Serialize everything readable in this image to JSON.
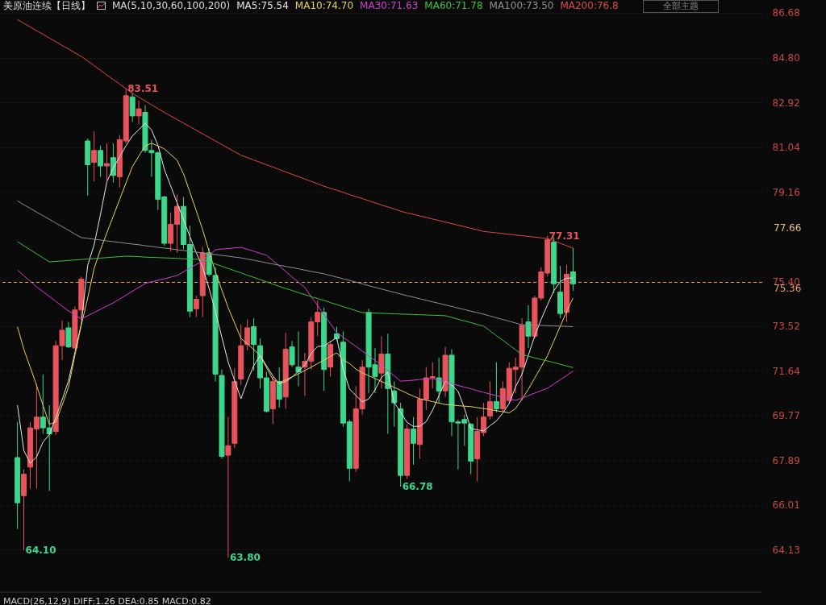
{
  "chart_data": {
    "type": "candlestick",
    "title": "美原油连续【日线】",
    "subtitle": "MA(5,10,30,60,100,200)",
    "grid": "y",
    "tick_labels": "y",
    "ylim": [
      62.35,
      87.22
    ],
    "yticks": [
      86.68,
      {
        "value": 84.8,
        "label": "84.80"
      },
      82.92,
      81.04,
      79.16,
      {
        "value": 75.4,
        "label": "75.40"
      },
      73.52,
      71.64,
      69.77,
      67.89,
      66.01,
      64.13
    ],
    "categories": [
      null,
      null,
      null,
      null,
      null,
      null,
      null,
      null,
      null,
      null,
      null,
      null,
      null,
      null,
      null,
      null,
      null,
      null,
      null,
      null,
      null,
      null,
      null,
      null,
      null,
      null,
      null,
      null,
      null,
      null,
      null,
      null,
      null,
      null,
      null,
      null,
      null,
      null,
      null,
      null,
      null,
      null,
      null,
      null,
      null,
      null,
      null,
      null,
      null,
      null,
      null,
      null,
      null,
      null,
      null,
      null,
      null,
      null,
      null,
      null,
      null,
      null,
      null,
      null,
      null,
      null,
      null,
      null,
      null,
      null,
      null,
      null,
      null,
      null,
      null,
      null,
      null,
      null,
      null,
      null,
      null,
      null,
      null,
      null,
      null,
      null,
      null,
      null
    ],
    "ohlc": [
      [
        68.0,
        69.5,
        65.0,
        66.1
      ],
      [
        66.4,
        67.5,
        64.1,
        67.3
      ],
      [
        67.6,
        69.5,
        66.7,
        69.25
      ],
      [
        69.2,
        71.1,
        66.7,
        69.7
      ],
      [
        69.7,
        71.5,
        69.0,
        69.25
      ],
      [
        69.25,
        70.2,
        66.6,
        69.0
      ],
      [
        69.1,
        72.9,
        68.95,
        72.7
      ],
      [
        72.7,
        73.75,
        72.1,
        73.35
      ],
      [
        73.45,
        73.7,
        72.6,
        72.65
      ],
      [
        72.6,
        74.35,
        72.6,
        74.2
      ],
      [
        74.2,
        75.6,
        73.8,
        75.5
      ],
      [
        81.3,
        81.4,
        79.0,
        80.3
      ],
      [
        80.4,
        81.7,
        79.6,
        80.9
      ],
      [
        80.9,
        81.1,
        79.8,
        80.25
      ],
      [
        80.25,
        81.2,
        79.65,
        80.35
      ],
      [
        80.6,
        81.2,
        79.55,
        79.85
      ],
      [
        79.8,
        81.55,
        79.35,
        81.35
      ],
      [
        81.3,
        83.51,
        81.2,
        83.2
      ],
      [
        83.15,
        83.3,
        82.1,
        82.35
      ],
      [
        82.35,
        83.0,
        82.0,
        82.65
      ],
      [
        82.5,
        82.8,
        80.8,
        80.9
      ],
      [
        80.9,
        81.35,
        79.8,
        80.8
      ],
      [
        80.8,
        80.85,
        78.4,
        78.85
      ],
      [
        78.95,
        79.0,
        76.9,
        77.0
      ],
      [
        77.0,
        78.3,
        76.65,
        77.8
      ],
      [
        77.8,
        79.05,
        76.6,
        78.55
      ],
      [
        78.55,
        78.95,
        76.75,
        76.95
      ],
      [
        76.95,
        77.75,
        73.9,
        74.15
      ],
      [
        74.25,
        74.8,
        73.9,
        74.65
      ],
      [
        74.8,
        76.85,
        73.9,
        76.6
      ],
      [
        76.6,
        76.8,
        75.6,
        75.7
      ],
      [
        75.65,
        76.0,
        71.2,
        71.5
      ],
      [
        71.45,
        71.7,
        67.95,
        68.05
      ],
      [
        68.1,
        69.7,
        63.8,
        68.5
      ],
      [
        68.6,
        71.75,
        68.4,
        71.2
      ],
      [
        71.3,
        73.6,
        71.05,
        72.7
      ],
      [
        72.75,
        73.8,
        72.5,
        73.45
      ],
      [
        73.5,
        73.85,
        71.65,
        72.75
      ],
      [
        72.7,
        73.0,
        70.9,
        71.35
      ],
      [
        71.35,
        71.6,
        69.9,
        69.95
      ],
      [
        70.05,
        71.4,
        69.4,
        71.2
      ],
      [
        71.2,
        71.8,
        70.1,
        70.45
      ],
      [
        70.55,
        73.25,
        70.05,
        72.55
      ],
      [
        72.65,
        72.9,
        71.8,
        71.9
      ],
      [
        71.8,
        73.3,
        71.0,
        71.6
      ],
      [
        71.8,
        72.4,
        70.6,
        72.05
      ],
      [
        72.05,
        73.9,
        71.7,
        73.7
      ],
      [
        73.7,
        74.6,
        73.1,
        74.1
      ],
      [
        74.1,
        74.3,
        70.8,
        71.7
      ],
      [
        71.8,
        72.9,
        71.4,
        72.75
      ],
      [
        73.2,
        73.5,
        72.9,
        73.0
      ],
      [
        72.85,
        73.3,
        69.3,
        69.45
      ],
      [
        69.5,
        69.6,
        67.0,
        67.55
      ],
      [
        67.55,
        71.0,
        67.4,
        70.05
      ],
      [
        70.05,
        72.1,
        69.8,
        71.8
      ],
      [
        74.1,
        74.25,
        70.7,
        71.8
      ],
      [
        71.9,
        72.6,
        70.7,
        71.4
      ],
      [
        71.55,
        73.1,
        70.9,
        72.35
      ],
      [
        72.35,
        73.2,
        69.0,
        70.9
      ],
      [
        70.8,
        71.2,
        69.3,
        70.3
      ],
      [
        70.05,
        70.3,
        66.78,
        67.25
      ],
      [
        67.25,
        69.4,
        67.1,
        69.2
      ],
      [
        69.2,
        69.7,
        67.7,
        68.6
      ],
      [
        68.55,
        70.9,
        67.95,
        70.45
      ],
      [
        70.45,
        71.8,
        70.0,
        71.35
      ],
      [
        71.35,
        72.0,
        70.9,
        71.4
      ],
      [
        71.35,
        72.2,
        70.3,
        70.8
      ],
      [
        70.8,
        72.65,
        70.55,
        72.3
      ],
      [
        72.3,
        72.55,
        68.9,
        69.5
      ],
      [
        69.5,
        69.6,
        67.5,
        69.45
      ],
      [
        69.6,
        69.8,
        68.5,
        69.45
      ],
      [
        69.4,
        69.45,
        67.3,
        67.85
      ],
      [
        67.95,
        69.7,
        67.0,
        69.1
      ],
      [
        69.05,
        70.3,
        68.9,
        69.7
      ],
      [
        69.75,
        71.2,
        69.6,
        70.35
      ],
      [
        70.35,
        72.0,
        69.9,
        70.05
      ],
      [
        70.05,
        71.2,
        69.9,
        70.9
      ],
      [
        70.4,
        72.0,
        70.3,
        71.75
      ],
      [
        71.7,
        72.2,
        70.7,
        71.8
      ],
      [
        71.8,
        73.85,
        70.4,
        73.55
      ],
      [
        73.7,
        74.4,
        72.6,
        73.1
      ],
      [
        73.1,
        74.8,
        73.0,
        74.7
      ],
      [
        74.7,
        76.0,
        74.6,
        75.8
      ],
      [
        75.75,
        77.31,
        75.6,
        77.15
      ],
      [
        77.05,
        77.25,
        74.9,
        75.3
      ],
      [
        74.95,
        76.05,
        73.85,
        74.05
      ],
      [
        74.1,
        76.1,
        73.7,
        75.7
      ],
      [
        75.8,
        76.8,
        75.0,
        75.3
      ]
    ],
    "colors": [
      "#3dd68c",
      "#e8545c",
      "#e8545c",
      "#e8545c",
      "#3dd68c",
      "#3dd68c",
      "#e8545c",
      "#e8545c",
      "#3dd68c",
      "#e8545c",
      "#e8545c",
      "#3dd68c",
      "#e8545c",
      "#3dd68c",
      "#e8545c",
      "#3dd68c",
      "#e8545c",
      "#e8545c",
      "#3dd68c",
      "#e8545c",
      "#3dd68c",
      "#3dd68c",
      "#3dd68c",
      "#3dd68c",
      "#e8545c",
      "#e8545c",
      "#3dd68c",
      "#3dd68c",
      "#e8545c",
      "#e8545c",
      "#3dd68c",
      "#3dd68c",
      "#3dd68c",
      "#e8545c",
      "#e8545c",
      "#e8545c",
      "#e8545c",
      "#3dd68c",
      "#3dd68c",
      "#3dd68c",
      "#e8545c",
      "#3dd68c",
      "#e8545c",
      "#3dd68c",
      "#3dd68c",
      "#e8545c",
      "#e8545c",
      "#e8545c",
      "#3dd68c",
      "#e8545c",
      "#3dd68c",
      "#3dd68c",
      "#3dd68c",
      "#e8545c",
      "#e8545c",
      "#3dd68c",
      "#3dd68c",
      "#e8545c",
      "#3dd68c",
      "#3dd68c",
      "#3dd68c",
      "#e8545c",
      "#3dd68c",
      "#e8545c",
      "#e8545c",
      "#e8545c",
      "#3dd68c",
      "#e8545c",
      "#3dd68c",
      "#3dd68c",
      "#3dd68c",
      "#3dd68c",
      "#e8545c",
      "#e8545c",
      "#e8545c",
      "#3dd68c",
      "#e8545c",
      "#e8545c",
      "#e8545c",
      "#e8545c",
      "#3dd68c",
      "#e8545c",
      "#e8545c",
      "#e8545c",
      "#3dd68c",
      "#3dd68c",
      "#e8545c",
      "#3dd68c"
    ],
    "series": [
      {
        "name": "MA5:75.54",
        "type": "line",
        "color": "#e6e6e6",
        "values": [
          70.2,
          68.3,
          67.76,
          68.03,
          68.65,
          68.97,
          69.68,
          70.43,
          71.23,
          72.42,
          73.61,
          76.08,
          76.93,
          78.21,
          79.59,
          80.16,
          80.63,
          81.1,
          81.51,
          81.77,
          82.05,
          81.76,
          81.12,
          80.11,
          79.41,
          78.7,
          78.0,
          77.29,
          76.6,
          76.01,
          75.11,
          74.14,
          73.06,
          72.01,
          71.24,
          70.47,
          71.21,
          71.86,
          72.29,
          71.86,
          71.43,
          71.1,
          71.2,
          71.38,
          71.63,
          71.89,
          72.38,
          72.67,
          72.69,
          72.87,
          73.04,
          71.72,
          70.88,
          70.61,
          70.34,
          70.46,
          70.85,
          71.37,
          71.59,
          70.31,
          69.91,
          69.48,
          69.31,
          69.32,
          69.51,
          69.99,
          70.6,
          71.21,
          71.05,
          70.78,
          70.07,
          69.21,
          69.17,
          69.12,
          69.34,
          69.54,
          69.87,
          70.27,
          70.97,
          71.5,
          72.3,
          73.11,
          73.8,
          74.42,
          75.01,
          75.39,
          75.54,
          75.54
        ]
      },
      {
        "name": "MA10:74.70",
        "type": "line",
        "color": "#e8d25a",
        "values": [
          73.5,
          72.55,
          71.8,
          71.03,
          70.2,
          69.4,
          69.5,
          70.2,
          70.97,
          72.3,
          73.57,
          74.7,
          75.94,
          76.73,
          77.44,
          78.14,
          78.84,
          79.54,
          80.22,
          80.66,
          81.1,
          81.2,
          81.09,
          80.97,
          80.73,
          80.49,
          79.92,
          79.15,
          78.37,
          77.57,
          76.67,
          75.8,
          75.04,
          74.3,
          73.65,
          73.01,
          72.78,
          72.54,
          72.28,
          71.78,
          71.28,
          71.15,
          71.27,
          71.39,
          71.52,
          71.66,
          71.8,
          71.95,
          72.1,
          72.25,
          72.4,
          72.1,
          71.95,
          71.72,
          71.56,
          71.44,
          71.32,
          71.2,
          71.08,
          70.95,
          70.83,
          70.7,
          70.58,
          70.47,
          70.41,
          70.35,
          70.29,
          70.23,
          70.21,
          70.18,
          70.16,
          70.14,
          70.1,
          70.06,
          70.02,
          69.97,
          69.93,
          69.88,
          70.06,
          70.45,
          70.87,
          71.34,
          71.81,
          72.28,
          72.9,
          73.52,
          74.14,
          74.7
        ]
      },
      {
        "name": "MA30:71.63",
        "type": "line",
        "color": "#d040d0",
        "values": [
          75.88,
          75.64,
          75.41,
          75.17,
          74.97,
          74.77,
          74.56,
          74.36,
          74.16,
          73.99,
          73.82,
          73.96,
          74.09,
          74.23,
          74.36,
          74.5,
          74.66,
          74.82,
          74.99,
          75.15,
          75.31,
          75.38,
          75.45,
          75.51,
          75.58,
          75.65,
          75.8,
          75.96,
          76.11,
          76.26,
          76.5,
          76.73,
          76.76,
          76.78,
          76.81,
          76.83,
          76.75,
          76.67,
          76.58,
          76.5,
          76.27,
          76.05,
          75.82,
          75.59,
          75.37,
          75.14,
          74.76,
          74.39,
          74.01,
          73.63,
          73.25,
          73.06,
          72.86,
          72.67,
          72.47,
          72.28,
          72.08,
          71.89,
          71.66,
          71.44,
          71.21,
          71.23,
          71.25,
          71.28,
          71.3,
          71.32,
          71.25,
          71.18,
          71.1,
          71.03,
          70.96,
          70.89,
          70.81,
          70.74,
          70.67,
          70.6,
          70.54,
          70.47,
          70.4,
          70.5,
          70.6,
          70.71,
          70.81,
          70.91,
          71.09,
          71.27,
          71.45,
          71.63
        ]
      },
      {
        "name": "MA60:71.78",
        "type": "line",
        "color": "#40c040",
        "values": [
          77.07,
          76.9,
          76.73,
          76.56,
          76.39,
          76.22,
          76.24,
          76.26,
          76.28,
          76.3,
          76.32,
          76.34,
          76.36,
          76.38,
          76.4,
          76.42,
          76.44,
          76.46,
          76.45,
          76.44,
          76.42,
          76.41,
          76.4,
          76.39,
          76.38,
          76.37,
          76.35,
          76.34,
          76.33,
          76.32,
          76.23,
          76.13,
          76.04,
          75.94,
          75.85,
          75.76,
          75.66,
          75.57,
          75.48,
          75.38,
          75.29,
          75.19,
          75.1,
          75.02,
          74.93,
          74.85,
          74.76,
          74.68,
          74.6,
          74.51,
          74.43,
          74.34,
          74.26,
          74.17,
          74.09,
          74.08,
          74.07,
          74.06,
          74.05,
          74.04,
          74.03,
          74.02,
          74.01,
          74.0,
          73.99,
          73.98,
          73.97,
          73.96,
          73.89,
          73.81,
          73.74,
          73.67,
          73.59,
          73.52,
          73.32,
          73.12,
          72.93,
          72.73,
          72.53,
          72.33,
          72.26,
          72.19,
          72.12,
          72.06,
          71.99,
          71.92,
          71.85,
          71.78
        ]
      },
      {
        "name": "MA100:73.50",
        "type": "line",
        "color": "#909090",
        "values": [
          78.78,
          78.62,
          78.47,
          78.31,
          78.16,
          78.01,
          77.85,
          77.7,
          77.55,
          77.39,
          77.24,
          77.21,
          77.17,
          77.14,
          77.1,
          77.07,
          77.04,
          77.0,
          76.97,
          76.94,
          76.9,
          76.87,
          76.83,
          76.8,
          76.77,
          76.73,
          76.7,
          76.66,
          76.63,
          76.6,
          76.56,
          76.53,
          76.49,
          76.46,
          76.42,
          76.39,
          76.34,
          76.29,
          76.24,
          76.18,
          76.13,
          76.08,
          76.03,
          75.98,
          75.93,
          75.87,
          75.82,
          75.77,
          75.72,
          75.65,
          75.58,
          75.51,
          75.44,
          75.37,
          75.3,
          75.22,
          75.15,
          75.08,
          75.01,
          74.94,
          74.87,
          74.8,
          74.74,
          74.67,
          74.61,
          74.54,
          74.48,
          74.41,
          74.35,
          74.28,
          74.22,
          74.15,
          74.09,
          74.02,
          73.95,
          73.87,
          73.8,
          73.73,
          73.65,
          73.58,
          73.57,
          73.56,
          73.55,
          73.54,
          73.53,
          73.52,
          73.51,
          73.5
        ]
      },
      {
        "name": "MA200:76.8",
        "type": "line",
        "color": "#e04848",
        "values": [
          86.4,
          86.24,
          86.09,
          85.93,
          85.78,
          85.62,
          85.47,
          85.31,
          85.16,
          85.0,
          84.85,
          84.66,
          84.46,
          84.27,
          84.07,
          83.88,
          83.69,
          83.49,
          83.3,
          83.14,
          82.98,
          82.82,
          82.66,
          82.5,
          82.35,
          82.2,
          82.05,
          81.9,
          81.75,
          81.6,
          81.45,
          81.3,
          81.15,
          81.0,
          80.85,
          80.7,
          80.6,
          80.5,
          80.4,
          80.3,
          80.2,
          80.1,
          80.0,
          79.9,
          79.8,
          79.7,
          79.6,
          79.5,
          79.4,
          79.31,
          79.23,
          79.14,
          79.05,
          78.96,
          78.88,
          78.79,
          78.7,
          78.61,
          78.53,
          78.44,
          78.35,
          78.28,
          78.22,
          78.15,
          78.09,
          78.02,
          77.96,
          77.89,
          77.83,
          77.76,
          77.7,
          77.63,
          77.57,
          77.5,
          77.47,
          77.44,
          77.41,
          77.38,
          77.35,
          77.32,
          77.29,
          77.26,
          77.23,
          77.2,
          77.1,
          77.0,
          76.9,
          76.8
        ]
      }
    ],
    "ref_lines": [
      {
        "axis": "y",
        "value": 75.36,
        "label": "75.36",
        "color": "#e8a060",
        "line_style": "dashed"
      }
    ],
    "annotations": [
      "全部主题",
      "MACD(26,12,9) DIFF:1.26 DEA:0.85 MACD:0.82",
      "83.51",
      "77.31",
      "64.10",
      "63.80",
      "66.78",
      "77.66"
    ]
  }
}
